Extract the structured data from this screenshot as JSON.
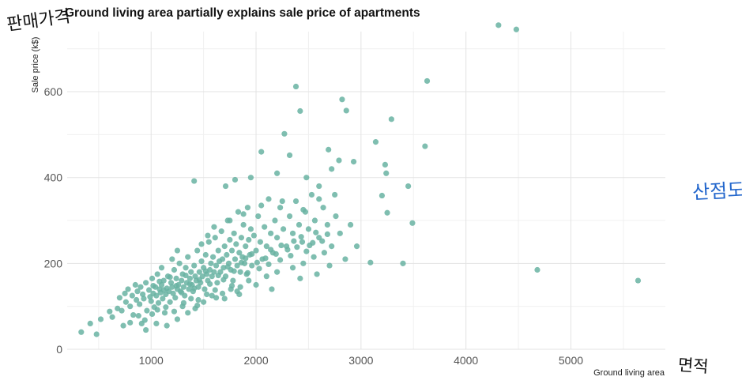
{
  "annotations": {
    "y_handwritten": "판매가격",
    "x_handwritten": "면적",
    "right_handwritten": "산점도"
  },
  "chart_data": {
    "type": "scatter",
    "title": "Ground living area partially explains sale price of apartments",
    "xlabel": "Ground living area",
    "ylabel": "Sale price (k$)",
    "xlim": [
      200,
      5900
    ],
    "ylim": [
      0,
      740
    ],
    "xticks": [
      1000,
      2000,
      3000,
      4000,
      5000
    ],
    "yticks": [
      0,
      200,
      400,
      600
    ],
    "grid": true,
    "point_color": "#69b3a2",
    "series": [
      {
        "values": [
          [
            334,
            40
          ],
          [
            420,
            60
          ],
          [
            480,
            35
          ],
          [
            520,
            70
          ],
          [
            605,
            88
          ],
          [
            630,
            75
          ],
          [
            680,
            95
          ],
          [
            700,
            120
          ],
          [
            720,
            90
          ],
          [
            735,
            55
          ],
          [
            750,
            130
          ],
          [
            760,
            110
          ],
          [
            780,
            140
          ],
          [
            800,
            100
          ],
          [
            820,
            125
          ],
          [
            830,
            80
          ],
          [
            850,
            150
          ],
          [
            860,
            115
          ],
          [
            870,
            135
          ],
          [
            890,
            105
          ],
          [
            900,
            145
          ],
          [
            910,
            60
          ],
          [
            920,
            128
          ],
          [
            930,
            118
          ],
          [
            950,
            155
          ],
          [
            960,
            90
          ],
          [
            980,
            138
          ],
          [
            990,
            122
          ],
          [
            1000,
            112
          ],
          [
            1010,
            165
          ],
          [
            1020,
            130
          ],
          [
            1030,
            98
          ],
          [
            1040,
            145
          ],
          [
            1050,
            125
          ],
          [
            1060,
            175
          ],
          [
            1070,
            108
          ],
          [
            1080,
            140
          ],
          [
            1090,
            132
          ],
          [
            1100,
            150
          ],
          [
            1110,
            118
          ],
          [
            1120,
            160
          ],
          [
            1130,
            85
          ],
          [
            1140,
            128
          ],
          [
            1150,
            142
          ],
          [
            1160,
            170
          ],
          [
            1170,
            135
          ],
          [
            1180,
            110
          ],
          [
            1190,
            155
          ],
          [
            1200,
            145
          ],
          [
            1210,
            130
          ],
          [
            1220,
            185
          ],
          [
            1230,
            120
          ],
          [
            1240,
            165
          ],
          [
            1250,
            140
          ],
          [
            1260,
            150
          ],
          [
            1270,
            200
          ],
          [
            1280,
            135
          ],
          [
            1290,
            160
          ],
          [
            1300,
            175
          ],
          [
            1310,
            145
          ],
          [
            1320,
            125
          ],
          [
            1330,
            190
          ],
          [
            1340,
            155
          ],
          [
            1350,
            215
          ],
          [
            1360,
            140
          ],
          [
            1370,
            165
          ],
          [
            1380,
            180
          ],
          [
            1390,
            150
          ],
          [
            1400,
            135
          ],
          [
            1410,
            195
          ],
          [
            1420,
            170
          ],
          [
            1430,
            160
          ],
          [
            1440,
            230
          ],
          [
            1450,
            145
          ],
          [
            1460,
            180
          ],
          [
            1470,
            155
          ],
          [
            1480,
            205
          ],
          [
            1490,
            170
          ],
          [
            1500,
            190
          ],
          [
            1510,
            140
          ],
          [
            1520,
            220
          ],
          [
            1530,
            175
          ],
          [
            1540,
            160
          ],
          [
            1550,
            250
          ],
          [
            1560,
            185
          ],
          [
            1570,
            200
          ],
          [
            1580,
            170
          ],
          [
            1590,
            215
          ],
          [
            1600,
            180
          ],
          [
            1610,
            260
          ],
          [
            1620,
            195
          ],
          [
            1630,
            155
          ],
          [
            1640,
            230
          ],
          [
            1650,
            205
          ],
          [
            1660,
            180
          ],
          [
            1670,
            275
          ],
          [
            1680,
            210
          ],
          [
            1690,
            190
          ],
          [
            1700,
            240
          ],
          [
            1710,
            170
          ],
          [
            1720,
            220
          ],
          [
            1730,
            300
          ],
          [
            1740,
            200
          ],
          [
            1750,
            255
          ],
          [
            1760,
            185
          ],
          [
            1770,
            230
          ],
          [
            1780,
            160
          ],
          [
            1790,
            270
          ],
          [
            1800,
            210
          ],
          [
            1810,
            245
          ],
          [
            1820,
            195
          ],
          [
            1830,
            320
          ],
          [
            1840,
            225
          ],
          [
            1850,
            180
          ],
          [
            1860,
            260
          ],
          [
            1870,
            215
          ],
          [
            1880,
            290
          ],
          [
            1890,
            200
          ],
          [
            1900,
            240
          ],
          [
            1910,
            175
          ],
          [
            1920,
            330
          ],
          [
            1930,
            255
          ],
          [
            1940,
            220
          ],
          [
            1950,
            280
          ],
          [
            1960,
            195
          ],
          [
            1980,
            265
          ],
          [
            2000,
            230
          ],
          [
            2020,
            310
          ],
          [
            2040,
            250
          ],
          [
            2060,
            210
          ],
          [
            2080,
            285
          ],
          [
            2100,
            240
          ],
          [
            2120,
            350
          ],
          [
            2140,
            270
          ],
          [
            2160,
            225
          ],
          [
            2180,
            300
          ],
          [
            2200,
            260
          ],
          [
            2230,
            330
          ],
          [
            2260,
            280
          ],
          [
            2290,
            240
          ],
          [
            2320,
            310
          ],
          [
            2350,
            270
          ],
          [
            2380,
            345
          ],
          [
            2410,
            290
          ],
          [
            2440,
            250
          ],
          [
            2470,
            320
          ],
          [
            2500,
            280
          ],
          [
            2530,
            360
          ],
          [
            2560,
            300
          ],
          [
            2600,
            260
          ],
          [
            2640,
            330
          ],
          [
            2680,
            290
          ],
          [
            2720,
            240
          ],
          [
            2760,
            310
          ],
          [
            2800,
            270
          ],
          [
            1410,
            392
          ],
          [
            1710,
            380
          ],
          [
            1800,
            395
          ],
          [
            1950,
            400
          ],
          [
            2050,
            460
          ],
          [
            2200,
            410
          ],
          [
            2270,
            502
          ],
          [
            2320,
            452
          ],
          [
            2380,
            612
          ],
          [
            2420,
            555
          ],
          [
            2480,
            400
          ],
          [
            2600,
            380
          ],
          [
            2690,
            465
          ],
          [
            2720,
            420
          ],
          [
            2790,
            440
          ],
          [
            2820,
            582
          ],
          [
            2860,
            556
          ],
          [
            2930,
            437
          ],
          [
            2960,
            240
          ],
          [
            3090,
            202
          ],
          [
            3140,
            483
          ],
          [
            3200,
            358
          ],
          [
            3230,
            430
          ],
          [
            3240,
            410
          ],
          [
            3250,
            318
          ],
          [
            3290,
            536
          ],
          [
            3400,
            200
          ],
          [
            3450,
            380
          ],
          [
            3490,
            294
          ],
          [
            3610,
            473
          ],
          [
            3630,
            625
          ],
          [
            4310,
            755
          ],
          [
            4480,
            745
          ],
          [
            4680,
            185
          ],
          [
            5640,
            160
          ],
          [
            1150,
            55
          ],
          [
            1250,
            70
          ],
          [
            1350,
            85
          ],
          [
            1420,
            95
          ],
          [
            1500,
            110
          ],
          [
            1580,
            125
          ],
          [
            1680,
            130
          ],
          [
            1760,
            140
          ],
          [
            1850,
            145
          ],
          [
            1930,
            160
          ],
          [
            2100,
            170
          ],
          [
            2200,
            180
          ],
          [
            2350,
            190
          ],
          [
            2450,
            200
          ],
          [
            2550,
            215
          ],
          [
            2650,
            225
          ],
          [
            950,
            45
          ],
          [
            1050,
            60
          ],
          [
            1300,
            100
          ],
          [
            1450,
            115
          ],
          [
            1620,
            120
          ],
          [
            1820,
            135
          ],
          [
            2000,
            150
          ],
          [
            2150,
            140
          ],
          [
            2420,
            165
          ],
          [
            2580,
            175
          ],
          [
            2700,
            195
          ],
          [
            2850,
            210
          ],
          [
            1100,
            190
          ],
          [
            1200,
            210
          ],
          [
            1250,
            230
          ],
          [
            1480,
            245
          ],
          [
            1540,
            265
          ],
          [
            1600,
            285
          ],
          [
            1750,
            300
          ],
          [
            1880,
            315
          ],
          [
            2050,
            335
          ],
          [
            2250,
            345
          ],
          [
            2450,
            325
          ],
          [
            2600,
            350
          ],
          [
            2750,
            360
          ],
          [
            2900,
            290
          ],
          [
            1020,
            148
          ],
          [
            1080,
            158
          ],
          [
            1120,
            138
          ],
          [
            1180,
            168
          ],
          [
            1240,
            148
          ],
          [
            1290,
            132
          ],
          [
            1330,
            172
          ],
          [
            1370,
            152
          ],
          [
            1410,
            142
          ],
          [
            1460,
            162
          ],
          [
            1520,
            182
          ],
          [
            1560,
            152
          ],
          [
            1640,
            172
          ],
          [
            1690,
            162
          ],
          [
            1730,
            192
          ],
          [
            1790,
            182
          ],
          [
            1860,
            202
          ],
          [
            1900,
            212
          ],
          [
            1960,
            222
          ],
          [
            2010,
            202
          ],
          [
            2090,
            212
          ],
          [
            2140,
            232
          ],
          [
            2190,
            222
          ],
          [
            2240,
            242
          ],
          [
            2300,
            232
          ],
          [
            2360,
            252
          ],
          [
            2430,
            262
          ],
          [
            2510,
            242
          ],
          [
            2570,
            272
          ],
          [
            2630,
            252
          ],
          [
            800,
            62
          ],
          [
            880,
            78
          ],
          [
            940,
            68
          ],
          [
            1010,
            82
          ],
          [
            1060,
            92
          ],
          [
            1140,
            98
          ],
          [
            1220,
            88
          ],
          [
            1310,
            108
          ],
          [
            1380,
            118
          ],
          [
            1440,
            102
          ],
          [
            1530,
            128
          ],
          [
            1610,
            138
          ],
          [
            1700,
            118
          ],
          [
            1770,
            148
          ],
          [
            1840,
            128
          ],
          [
            1920,
            178
          ],
          [
            2030,
            188
          ],
          [
            2120,
            198
          ],
          [
            2230,
            208
          ],
          [
            2330,
            218
          ],
          [
            2390,
            238
          ],
          [
            2480,
            228
          ],
          [
            2540,
            248
          ],
          [
            2680,
            268
          ]
        ]
      }
    ]
  }
}
